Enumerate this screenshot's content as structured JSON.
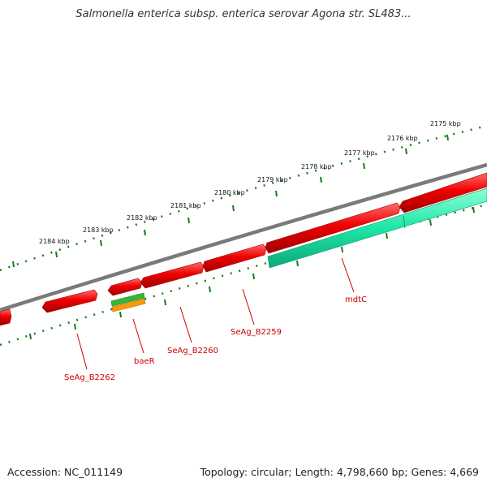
{
  "title": "Salmonella enterica subsp. enterica serovar Agona str. SL483...",
  "footer": {
    "accession": "Accession: NC_011149",
    "topology": "Topology: circular; Length: 4,798,660 bp; Genes: 4,669"
  },
  "colors": {
    "backbone": "#7a7a7a",
    "tick": "#1a7a1a",
    "gene_red": "#e80000",
    "gene_teal": "#1de6a6",
    "gene_green": "#33b833",
    "gene_orange": "#f59a0a",
    "label_red": "#cc0000"
  },
  "ticks": [
    {
      "label": "2175 kbp"
    },
    {
      "label": "2176 kbp"
    },
    {
      "label": "2177 kbp"
    },
    {
      "label": "2178 kbp"
    },
    {
      "label": "2179 kbp"
    },
    {
      "label": "2180 kbp"
    },
    {
      "label": "2181 kbp"
    },
    {
      "label": "2182 kbp"
    },
    {
      "label": "2183 kbp"
    },
    {
      "label": "2184 kbp"
    }
  ],
  "genes": [
    {
      "label": "mdtC"
    },
    {
      "label": "SeAg_B2259"
    },
    {
      "label": "SeAg_B2260"
    },
    {
      "label": "baeR"
    },
    {
      "label": "SeAg_B2262"
    }
  ]
}
